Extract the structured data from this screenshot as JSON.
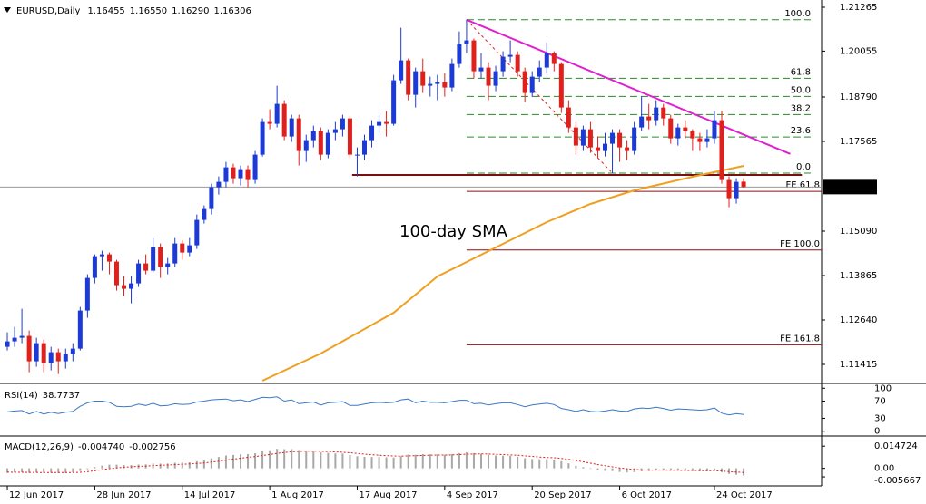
{
  "chart_data": {
    "type": "candlestick",
    "symbol": "EURUSD,Daily",
    "last_bar_labels": [
      "1.16455",
      "1.16550",
      "1.16290",
      "1.16306"
    ],
    "up_color": "#1c3ad6",
    "down_color": "#e0201c",
    "ylim": [
      1.10915,
      1.21465
    ],
    "yticks": [
      1.21265,
      1.20055,
      {
        "value": 1.1879,
        "label": "1.18790"
      },
      1.17565,
      {
        "value": 1.1509,
        "label": "1.15090"
      },
      1.13865,
      {
        "value": 1.1264,
        "label": "1.12640"
      },
      1.11415
    ],
    "current_price": 1.16306,
    "xlim": [
      -1,
      111.7
    ],
    "xticks": [
      {
        "value": 0,
        "label": "12 Jun 2017"
      },
      {
        "value": 12,
        "label": "28 Jun 2017"
      },
      {
        "value": 24,
        "label": "14 Jul 2017"
      },
      {
        "value": 36,
        "label": "1 Aug 2017"
      },
      {
        "value": 48,
        "label": "17 Aug 2017"
      },
      {
        "value": 60,
        "label": "4 Sep 2017"
      },
      {
        "value": 72,
        "label": "20 Sep 2017"
      },
      {
        "value": 84,
        "label": "6 Oct 2017"
      },
      {
        "value": 97,
        "label": "24 Oct 2017"
      }
    ],
    "ohlc": [
      [
        1.119,
        1.123,
        1.118,
        1.1205
      ],
      [
        1.1205,
        1.1245,
        1.119,
        1.1215
      ],
      [
        1.1215,
        1.1295,
        1.12,
        1.122
      ],
      [
        1.122,
        1.1235,
        1.112,
        1.115
      ],
      [
        1.115,
        1.1215,
        1.1135,
        1.12
      ],
      [
        1.12,
        1.121,
        1.112,
        1.1145
      ],
      [
        1.1145,
        1.119,
        1.1125,
        1.1175
      ],
      [
        1.1175,
        1.1185,
        1.1115,
        1.115
      ],
      [
        1.115,
        1.1185,
        1.113,
        1.117
      ],
      [
        1.117,
        1.12,
        1.115,
        1.1185
      ],
      [
        1.1185,
        1.13,
        1.118,
        1.129
      ],
      [
        1.129,
        1.139,
        1.127,
        1.138
      ],
      [
        1.138,
        1.1445,
        1.1365,
        1.144
      ],
      [
        1.144,
        1.1455,
        1.14,
        1.1445
      ],
      [
        1.1445,
        1.145,
        1.139,
        1.1425
      ],
      [
        1.1425,
        1.143,
        1.1345,
        1.136
      ],
      [
        1.136,
        1.1385,
        1.133,
        1.135
      ],
      [
        1.135,
        1.1385,
        1.131,
        1.1365
      ],
      [
        1.1365,
        1.143,
        1.1355,
        1.142
      ],
      [
        1.142,
        1.1445,
        1.139,
        1.14
      ],
      [
        1.14,
        1.149,
        1.1395,
        1.1465
      ],
      [
        1.1465,
        1.1475,
        1.138,
        1.141
      ],
      [
        1.141,
        1.1435,
        1.139,
        1.142
      ],
      [
        1.142,
        1.149,
        1.141,
        1.1475
      ],
      [
        1.1475,
        1.1485,
        1.143,
        1.145
      ],
      [
        1.145,
        1.149,
        1.144,
        1.147
      ],
      [
        1.147,
        1.1555,
        1.146,
        1.154
      ],
      [
        1.154,
        1.158,
        1.153,
        1.157
      ],
      [
        1.157,
        1.164,
        1.1555,
        1.163
      ],
      [
        1.163,
        1.166,
        1.161,
        1.1645
      ],
      [
        1.1645,
        1.17,
        1.163,
        1.1685
      ],
      [
        1.1685,
        1.1695,
        1.164,
        1.1655
      ],
      [
        1.1655,
        1.169,
        1.1635,
        1.168
      ],
      [
        1.168,
        1.169,
        1.163,
        1.165
      ],
      [
        1.165,
        1.173,
        1.164,
        1.172
      ],
      [
        1.172,
        1.182,
        1.1715,
        1.181
      ],
      [
        1.181,
        1.1845,
        1.179,
        1.1805
      ],
      [
        1.1805,
        1.191,
        1.1795,
        1.186
      ],
      [
        1.186,
        1.187,
        1.176,
        1.177
      ],
      [
        1.177,
        1.183,
        1.1755,
        1.182
      ],
      [
        1.182,
        1.183,
        1.169,
        1.173
      ],
      [
        1.173,
        1.1775,
        1.17,
        1.176
      ],
      [
        1.176,
        1.18,
        1.174,
        1.1785
      ],
      [
        1.1785,
        1.1795,
        1.1705,
        1.172
      ],
      [
        1.172,
        1.179,
        1.171,
        1.178
      ],
      [
        1.178,
        1.181,
        1.176,
        1.179
      ],
      [
        1.179,
        1.183,
        1.177,
        1.182
      ],
      [
        1.182,
        1.1825,
        1.171,
        1.172
      ],
      [
        1.172,
        1.174,
        1.166,
        1.172
      ],
      [
        1.172,
        1.1775,
        1.1705,
        1.176
      ],
      [
        1.176,
        1.1815,
        1.174,
        1.18
      ],
      [
        1.18,
        1.183,
        1.178,
        1.181
      ],
      [
        1.181,
        1.184,
        1.177,
        1.1805
      ],
      [
        1.1805,
        1.194,
        1.18,
        1.1925
      ],
      [
        1.1925,
        1.207,
        1.1915,
        1.198
      ],
      [
        1.198,
        1.1985,
        1.187,
        1.1885
      ],
      [
        1.1885,
        1.196,
        1.185,
        1.195
      ],
      [
        1.195,
        1.1985,
        1.189,
        1.191
      ],
      [
        1.191,
        1.1935,
        1.188,
        1.1915
      ],
      [
        1.1915,
        1.194,
        1.187,
        1.192
      ],
      [
        1.192,
        1.1945,
        1.188,
        1.1905
      ],
      [
        1.1905,
        1.1985,
        1.1895,
        1.197
      ],
      [
        1.197,
        1.206,
        1.196,
        1.2025
      ],
      [
        1.2025,
        1.2092,
        1.2,
        1.2035
      ],
      [
        1.2035,
        1.204,
        1.193,
        1.195
      ],
      [
        1.195,
        1.2,
        1.193,
        1.196
      ],
      [
        1.196,
        1.1975,
        1.187,
        1.191
      ],
      [
        1.191,
        1.1965,
        1.1895,
        1.195
      ],
      [
        1.195,
        1.2005,
        1.1935,
        1.199
      ],
      [
        1.199,
        1.2035,
        1.1975,
        1.1995
      ],
      [
        1.1995,
        1.2005,
        1.1935,
        1.195
      ],
      [
        1.195,
        1.196,
        1.1865,
        1.189
      ],
      [
        1.189,
        1.195,
        1.188,
        1.1935
      ],
      [
        1.1935,
        1.198,
        1.192,
        1.196
      ],
      [
        1.196,
        1.203,
        1.1945,
        1.2
      ],
      [
        1.2,
        1.2005,
        1.195,
        1.197
      ],
      [
        1.197,
        1.1975,
        1.1835,
        1.185
      ],
      [
        1.185,
        1.187,
        1.178,
        1.1795
      ],
      [
        1.1795,
        1.181,
        1.172,
        1.1745
      ],
      [
        1.1745,
        1.18,
        1.173,
        1.179
      ],
      [
        1.179,
        1.181,
        1.1725,
        1.174
      ],
      [
        1.174,
        1.177,
        1.171,
        1.173
      ],
      [
        1.173,
        1.178,
        1.1715,
        1.175
      ],
      [
        1.175,
        1.179,
        1.1669,
        1.178
      ],
      [
        1.178,
        1.179,
        1.17,
        1.174
      ],
      [
        1.174,
        1.176,
        1.1705,
        1.173
      ],
      [
        1.173,
        1.181,
        1.172,
        1.1795
      ],
      [
        1.1795,
        1.188,
        1.1785,
        1.1825
      ],
      [
        1.1825,
        1.186,
        1.179,
        1.1815
      ],
      [
        1.1815,
        1.187,
        1.18,
        1.185
      ],
      [
        1.185,
        1.186,
        1.18,
        1.182
      ],
      [
        1.182,
        1.183,
        1.175,
        1.1765
      ],
      [
        1.1765,
        1.1805,
        1.1745,
        1.1795
      ],
      [
        1.1795,
        1.1815,
        1.1765,
        1.1785
      ],
      [
        1.1785,
        1.179,
        1.173,
        1.1765
      ],
      [
        1.1765,
        1.178,
        1.173,
        1.1755
      ],
      [
        1.1755,
        1.179,
        1.174,
        1.1765
      ],
      [
        1.1765,
        1.184,
        1.175,
        1.1815
      ],
      [
        1.1815,
        1.184,
        1.164,
        1.165
      ],
      [
        1.165,
        1.166,
        1.1575,
        1.16
      ],
      [
        1.16,
        1.1655,
        1.1585,
        1.1645
      ],
      [
        1.16455,
        1.1655,
        1.1629,
        1.16306
      ]
    ],
    "sma": {
      "name": "100-day SMA",
      "color": "#f0a020",
      "x": [
        35,
        43,
        53,
        59,
        64,
        74,
        80,
        86,
        94,
        101
      ],
      "values": [
        1.10965,
        1.11715,
        1.1284,
        1.1384,
        1.1434,
        1.1534,
        1.1584,
        1.16215,
        1.1659,
        1.1689
      ]
    },
    "trendline": {
      "color": "#e020d0",
      "x": [
        63,
        107.4
      ],
      "values": [
        1.2092,
        1.1722
      ]
    },
    "support": {
      "color": "#7a1010",
      "x": [
        47.3,
        109
      ],
      "value": 1.1664
    },
    "fib_retracement": {
      "color": "#2a8a2a",
      "x": [
        63,
        110.2
      ],
      "high": 1.2092,
      "low": 1.1669,
      "low_x": 83,
      "levels": [
        {
          "value": 100,
          "label": "100.0"
        },
        61.8,
        {
          "value": 50,
          "label": "50.0"
        },
        38.2,
        23.6,
        {
          "value": 0,
          "label": "0.0"
        }
      ]
    },
    "fib_expansion": {
      "color": "#8b1010",
      "x": [
        63,
        111.7
      ],
      "a": 1.2092,
      "b": 1.1669,
      "c": 1.188,
      "levels": [
        {
          "value": 61.8,
          "label": "FE 61.8"
        },
        {
          "value": 100,
          "label": "FE 100.0"
        },
        {
          "value": 161.8,
          "label": "FE 161.8"
        }
      ]
    },
    "indicators": [
      {
        "type": "line",
        "name": "RSI(14)",
        "color": "#3a78c8",
        "ylim": [
          -9.1,
          109.1
        ],
        "yticks": [
          100,
          70,
          30,
          0
        ],
        "values": [
          45,
          47,
          48,
          40,
          46,
          40,
          44,
          41,
          44,
          46,
          58,
          66,
          70,
          70,
          67,
          58,
          57,
          58,
          63,
          60,
          65,
          59,
          60,
          64,
          62,
          63,
          68,
          70,
          73,
          74,
          75,
          71,
          73,
          69,
          74,
          79,
          78,
          80,
          70,
          73,
          64,
          66,
          68,
          61,
          66,
          67,
          69,
          60,
          60,
          63,
          66,
          67,
          66,
          67,
          73,
          75,
          66,
          70,
          67,
          67,
          66,
          69,
          72,
          72,
          64,
          65,
          61,
          64,
          66,
          66,
          62,
          57,
          61,
          63,
          65,
          62,
          53,
          50,
          46,
          50,
          46,
          45,
          47,
          50,
          47,
          46,
          52,
          54,
          53,
          56,
          53,
          49,
          52,
          51,
          50,
          49,
          50,
          54,
          42,
          38,
          41,
          38.7737
        ]
      },
      {
        "type": "macd",
        "name": "MACD(12,26,9)",
        "last_labels": [
          "-0.004740",
          "-0.002756"
        ],
        "ylim": [
          -0.01165,
          0.02086
        ],
        "yticks": [
          0.014724,
          {
            "value": 0,
            "label": "0.00"
          },
          -0.005667
        ],
        "histogram": {
          "color": "#a8a8a8",
          "values": [
            -0.003,
            -0.0028,
            -0.0026,
            -0.003,
            -0.0028,
            -0.003,
            -0.0029,
            -0.003,
            -0.0029,
            -0.0027,
            -0.0018,
            -0.0005,
            0.0008,
            0.0018,
            0.0024,
            0.0024,
            0.0022,
            0.0021,
            0.0025,
            0.0026,
            0.0032,
            0.0031,
            0.0032,
            0.0037,
            0.0038,
            0.004,
            0.0047,
            0.0055,
            0.0066,
            0.0075,
            0.0085,
            0.0089,
            0.0093,
            0.0094,
            0.01,
            0.0112,
            0.012,
            0.0129,
            0.0127,
            0.0128,
            0.0121,
            0.0117,
            0.0115,
            0.0106,
            0.0103,
            0.0099,
            0.0098,
            0.0088,
            0.008,
            0.0076,
            0.0075,
            0.0075,
            0.0073,
            0.0072,
            0.0081,
            0.0091,
            0.009,
            0.0094,
            0.0093,
            0.0093,
            0.009,
            0.0094,
            0.0101,
            0.0106,
            0.0101,
            0.0097,
            0.0089,
            0.0085,
            0.0084,
            0.0083,
            0.0077,
            0.0067,
            0.0062,
            0.006,
            0.0061,
            0.0059,
            0.0047,
            0.0033,
            0.0017,
            0.0008,
            -0.0003,
            -0.0012,
            -0.0017,
            -0.0018,
            -0.0024,
            -0.0028,
            -0.0025,
            -0.002,
            -0.0018,
            -0.0013,
            -0.0012,
            -0.0015,
            -0.0014,
            -0.0015,
            -0.0017,
            -0.0019,
            -0.0019,
            -0.0015,
            -0.0025,
            -0.0037,
            -0.0042,
            -0.00474
          ]
        },
        "signal": {
          "color": "#e02020",
          "values": [
            -0.0025,
            -0.0026,
            -0.0026,
            -0.0027,
            -0.0027,
            -0.0028,
            -0.0028,
            -0.0028,
            -0.0028,
            -0.0028,
            -0.0026,
            -0.0022,
            -0.0016,
            -0.0009,
            -0.0002,
            0.0003,
            0.0007,
            0.001,
            0.0013,
            0.0015,
            0.0018,
            0.002,
            0.0022,
            0.0025,
            0.0027,
            0.0029,
            0.0032,
            0.0036,
            0.0041,
            0.0047,
            0.0054,
            0.0061,
            0.0067,
            0.0073,
            0.0078,
            0.0085,
            0.0092,
            0.0099,
            0.0105,
            0.011,
            0.0112,
            0.0114,
            0.0114,
            0.0113,
            0.0111,
            0.0109,
            0.0107,
            0.0103,
            0.0099,
            0.0094,
            0.009,
            0.0087,
            0.0084,
            0.0082,
            0.0081,
            0.0083,
            0.0084,
            0.0086,
            0.0087,
            0.0088,
            0.0088,
            0.0089,
            0.0091,
            0.0094,
            0.0095,
            0.0096,
            0.0095,
            0.0093,
            0.0091,
            0.0089,
            0.0087,
            0.0083,
            0.0079,
            0.0075,
            0.0072,
            0.007,
            0.0066,
            0.006,
            0.0052,
            0.0043,
            0.0034,
            0.0025,
            0.0017,
            0.001,
            0.0003,
            -0.0003,
            -0.0007,
            -0.001,
            -0.0012,
            -0.0012,
            -0.0012,
            -0.0013,
            -0.0013,
            -0.0014,
            -0.0014,
            -0.0015,
            -0.0016,
            -0.0016,
            -0.0018,
            -0.0022,
            -0.0025,
            -0.002756
          ]
        }
      }
    ]
  }
}
